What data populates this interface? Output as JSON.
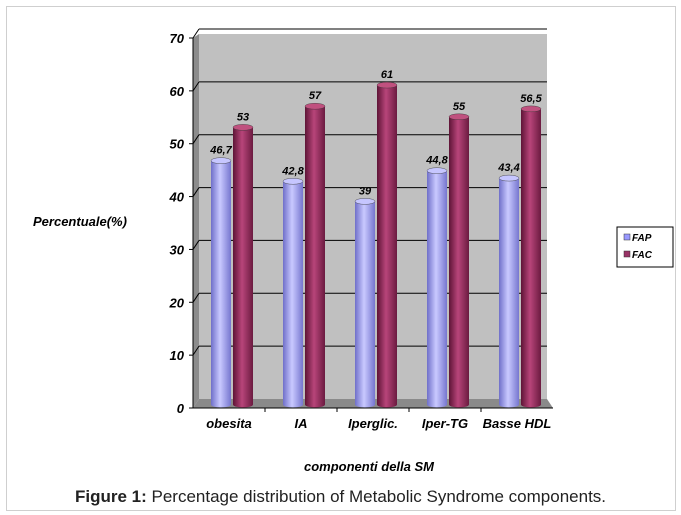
{
  "chart_data": {
    "type": "bar",
    "title": "",
    "xlabel": "componenti della SM",
    "ylabel": "Percentuale(%)",
    "ylim": [
      0,
      70
    ],
    "yticks": [
      "0",
      "10",
      "20",
      "30",
      "40",
      "50",
      "60",
      "70"
    ],
    "grid": true,
    "legend_position": "right",
    "categories": [
      "obesita",
      "IA",
      "Iperglic.",
      "Iper-TG",
      "Basse HDL"
    ],
    "series": [
      {
        "name": "FAP",
        "color": "#9999ff",
        "values": [
          46.7,
          42.8,
          39,
          44.8,
          43.4
        ],
        "labels": [
          "46,7",
          "42,8",
          "39",
          "44,8",
          "43,4"
        ]
      },
      {
        "name": "FAC",
        "color": "#993366",
        "values": [
          53,
          57,
          61,
          55,
          56.5
        ],
        "labels": [
          "53",
          "57",
          "61",
          "55",
          "56,5"
        ]
      }
    ]
  },
  "caption": {
    "prefix": "Figure 1:",
    "text": " Percentage distribution of Metabolic Syndrome components."
  }
}
